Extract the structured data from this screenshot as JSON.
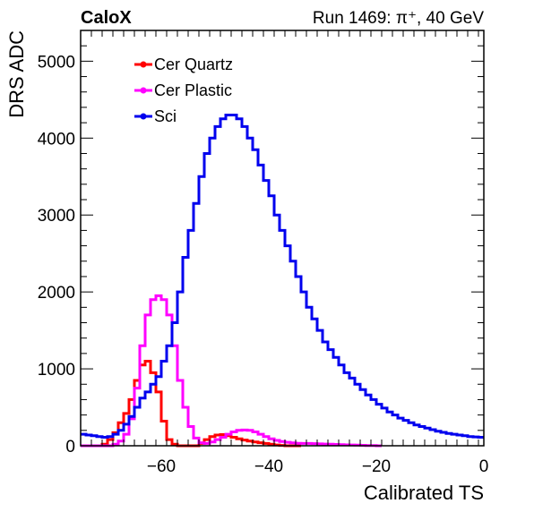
{
  "header": {
    "left": "CaloX",
    "right": "Run 1469:   π⁺, 40 GeV"
  },
  "chart_data": {
    "type": "line",
    "step": true,
    "xlabel": "Calibrated TS",
    "ylabel": "DRS ADC",
    "xlim": [
      -75,
      0
    ],
    "ylim": [
      0,
      5400
    ],
    "xticks": [
      -60,
      -40,
      -20,
      0
    ],
    "xtick_labels": [
      "−60",
      "−40",
      "−20",
      "0"
    ],
    "yticks": [
      0,
      1000,
      2000,
      3000,
      4000,
      5000
    ],
    "ytick_labels": [
      "0",
      "1000",
      "2000",
      "3000",
      "4000",
      "5000"
    ],
    "legend_position": "top-left",
    "series": [
      {
        "name": "Cer Quartz",
        "color": "#ff0000",
        "x": [
          -75,
          -74,
          -73,
          -72,
          -71,
          -70,
          -69,
          -68,
          -67,
          -66,
          -65,
          -64,
          -63,
          -62,
          -61,
          -60,
          -59,
          -58,
          -57,
          -56,
          -55,
          -54,
          -53,
          -52,
          -51,
          -50,
          -49,
          -48,
          -47,
          -46,
          -45,
          -44,
          -43,
          -42,
          -41,
          -40,
          -39,
          -38,
          -37,
          -36,
          -35
        ],
        "values": [
          0,
          0,
          0,
          0,
          20,
          80,
          170,
          300,
          420,
          600,
          850,
          1050,
          1100,
          950,
          700,
          320,
          80,
          20,
          0,
          0,
          0,
          0,
          30,
          80,
          120,
          140,
          145,
          130,
          110,
          90,
          75,
          60,
          50,
          40,
          30,
          20,
          10,
          5,
          0,
          0,
          0
        ]
      },
      {
        "name": "Cer Plastic",
        "color": "#ff00ff",
        "x": [
          -75,
          -74,
          -73,
          -72,
          -71,
          -70,
          -69,
          -68,
          -67,
          -66,
          -65,
          -64,
          -63,
          -62,
          -61,
          -60,
          -59,
          -58,
          -57,
          -56,
          -55,
          -54,
          -53,
          -52,
          -51,
          -50,
          -49,
          -48,
          -47,
          -46,
          -45,
          -44,
          -43,
          -42,
          -41,
          -40,
          -39,
          -38,
          -37,
          -36,
          -35,
          -34,
          -33,
          -32,
          -31,
          -30,
          -29,
          -28,
          -27,
          -26,
          -25,
          -24,
          -23,
          -22,
          -21,
          -20
        ],
        "values": [
          0,
          0,
          0,
          0,
          0,
          0,
          20,
          60,
          150,
          350,
          750,
          1300,
          1700,
          1900,
          1950,
          1900,
          1700,
          1300,
          850,
          500,
          250,
          100,
          40,
          30,
          50,
          80,
          110,
          150,
          180,
          200,
          205,
          200,
          180,
          150,
          120,
          90,
          70,
          55,
          45,
          38,
          32,
          30,
          30,
          28,
          25,
          22,
          20,
          18,
          15,
          12,
          10,
          8,
          6,
          4,
          2,
          0
        ]
      },
      {
        "name": "Sci",
        "color": "#0000ee",
        "x": [
          -75,
          -74,
          -73,
          -72,
          -71,
          -70,
          -69,
          -68,
          -67,
          -66,
          -65,
          -64,
          -63,
          -62,
          -61,
          -60,
          -59,
          -58,
          -57,
          -56,
          -55,
          -54,
          -53,
          -52,
          -51,
          -50,
          -49,
          -48,
          -47,
          -46,
          -45,
          -44,
          -43,
          -42,
          -41,
          -40,
          -39,
          -38,
          -37,
          -36,
          -35,
          -34,
          -33,
          -32,
          -31,
          -30,
          -29,
          -28,
          -27,
          -26,
          -25,
          -24,
          -23,
          -22,
          -21,
          -20,
          -19,
          -18,
          -17,
          -16,
          -15,
          -14,
          -13,
          -12,
          -11,
          -10,
          -9,
          -8,
          -7,
          -6,
          -5,
          -4,
          -3,
          -2,
          -1
        ],
        "values": [
          150,
          140,
          130,
          120,
          110,
          120,
          150,
          200,
          280,
          380,
          500,
          620,
          700,
          800,
          900,
          1100,
          1300,
          1600,
          2000,
          2450,
          2800,
          3150,
          3500,
          3800,
          4000,
          4150,
          4250,
          4300,
          4300,
          4250,
          4150,
          4000,
          3850,
          3650,
          3450,
          3250,
          3000,
          2800,
          2600,
          2400,
          2200,
          2000,
          1800,
          1650,
          1500,
          1350,
          1250,
          1150,
          1050,
          950,
          880,
          800,
          730,
          660,
          600,
          540,
          490,
          440,
          400,
          360,
          330,
          300,
          270,
          250,
          230,
          210,
          190,
          175,
          160,
          150,
          140,
          130,
          120,
          115,
          110
        ]
      }
    ]
  }
}
